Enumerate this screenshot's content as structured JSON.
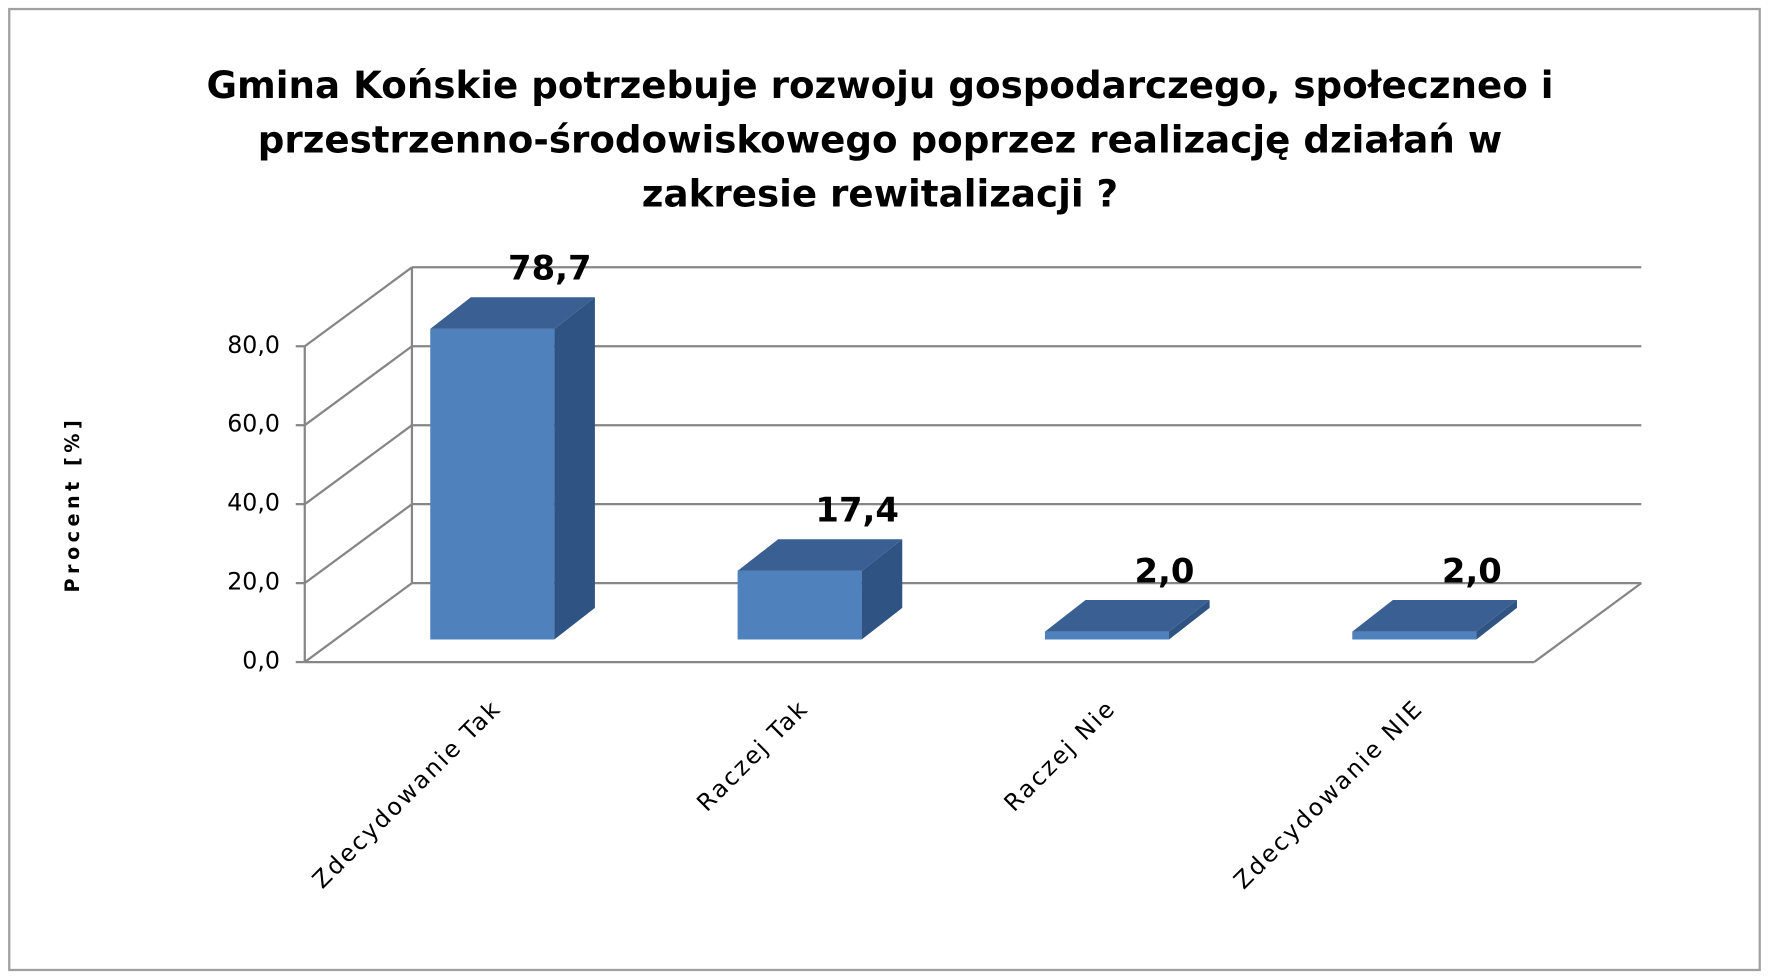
{
  "chart_data": {
    "type": "bar3d",
    "title": "Gmina Końskie potrzebuje rozwoju gospodarczego, społeczneo i przestrzenno-środowiskowego poprzez realizację działań w zakresie rewitalizacji ?",
    "y_label": "Procent [%]",
    "categories": [
      "Zdecydowanie Tak",
      "Raczej Tak",
      "Raczej Nie",
      "Zdecydowanie NIE"
    ],
    "values": [
      78.7,
      17.4,
      2.0,
      2.0
    ],
    "value_labels": [
      "78,7",
      "17,4",
      "2,0",
      "2,0"
    ],
    "color": "#4f81bd",
    "ylim": [
      0,
      80
    ],
    "yticks": [
      {
        "value": 0,
        "label": "0,0"
      },
      {
        "value": 20,
        "label": "20,0"
      },
      {
        "value": 40,
        "label": "40,0"
      },
      {
        "value": 60,
        "label": "60,0"
      },
      {
        "value": 80,
        "label": "80,0"
      }
    ],
    "grid": true
  }
}
